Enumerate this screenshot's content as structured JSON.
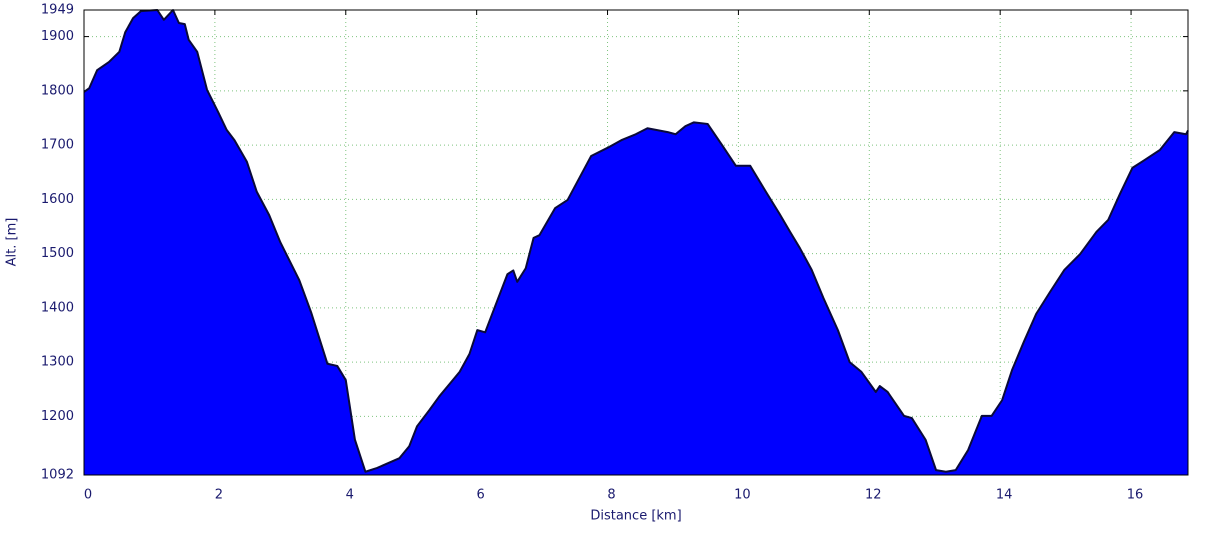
{
  "chart_data": {
    "type": "area",
    "x_label": "Distance [km]",
    "y_label": "Alt. [m]",
    "color": "#0000ff",
    "line_color": "#0a0a3a",
    "grid": true,
    "xlim": [
      0,
      16.87
    ],
    "ylim": [
      1092,
      1949
    ],
    "xticks": [
      0,
      2,
      4,
      6,
      8,
      10,
      12,
      14,
      16
    ],
    "yticks": [
      1092,
      1200,
      1300,
      1400,
      1500,
      1600,
      1700,
      1800,
      1900,
      1949
    ],
    "x": [
      0,
      0.08,
      0.2,
      0.38,
      0.54,
      0.63,
      0.75,
      0.87,
      1.12,
      1.22,
      1.36,
      1.45,
      1.54,
      1.6,
      1.73,
      1.88,
      2.05,
      2.18,
      2.3,
      2.49,
      2.64,
      2.83,
      3.0,
      3.29,
      3.47,
      3.72,
      3.87,
      4.0,
      4.14,
      4.3,
      4.48,
      4.82,
      4.97,
      5.09,
      5.28,
      5.43,
      5.74,
      5.89,
      6.01,
      6.13,
      6.26,
      6.47,
      6.56,
      6.62,
      6.75,
      6.87,
      6.96,
      7.2,
      7.39,
      7.75,
      8.0,
      8.21,
      8.43,
      8.61,
      8.92,
      9.04,
      9.19,
      9.32,
      9.53,
      9.75,
      9.96,
      10.18,
      10.42,
      10.63,
      10.79,
      10.94,
      11.12,
      11.3,
      11.52,
      11.7,
      11.88,
      12.1,
      12.16,
      12.28,
      12.53,
      12.65,
      12.86,
      13.02,
      13.17,
      13.32,
      13.51,
      13.72,
      13.87,
      14.03,
      14.18,
      14.36,
      14.55,
      14.76,
      14.98,
      15.22,
      15.47,
      15.65,
      15.83,
      16.02,
      16.2,
      16.44,
      16.66,
      16.84,
      16.87
    ],
    "values": [
      1798,
      1805,
      1838,
      1853,
      1872,
      1908,
      1934,
      1947,
      1949,
      1931,
      1949,
      1925,
      1923,
      1894,
      1872,
      1802,
      1761,
      1728,
      1709,
      1669,
      1614,
      1571,
      1521,
      1451,
      1392,
      1297,
      1293,
      1267,
      1157,
      1098,
      1105,
      1123,
      1145,
      1182,
      1212,
      1237,
      1282,
      1315,
      1359,
      1355,
      1396,
      1462,
      1469,
      1448,
      1473,
      1529,
      1534,
      1584,
      1599,
      1680,
      1695,
      1709,
      1720,
      1731,
      1724,
      1720,
      1735,
      1742,
      1739,
      1700,
      1662,
      1662,
      1614,
      1573,
      1540,
      1510,
      1470,
      1418,
      1359,
      1300,
      1282,
      1245,
      1256,
      1245,
      1201,
      1197,
      1157,
      1101,
      1098,
      1101,
      1138,
      1201,
      1201,
      1230,
      1285,
      1337,
      1389,
      1429,
      1470,
      1499,
      1540,
      1562,
      1610,
      1658,
      1672,
      1691,
      1724,
      1720,
      1727
    ]
  }
}
